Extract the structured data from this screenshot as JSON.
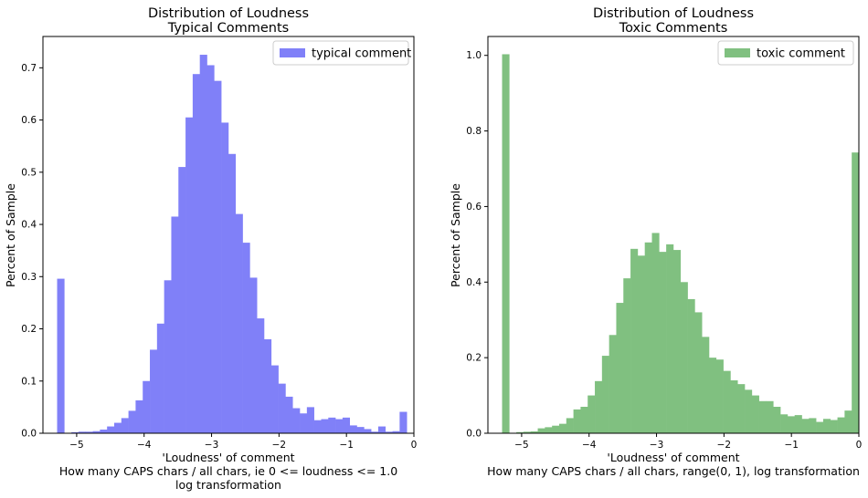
{
  "chart_data": [
    {
      "type": "histogram",
      "title_line1": "Distribution of Loudness",
      "title_line2": "Typical Comments",
      "ylabel": "Percent of Sample",
      "xlabel_lines": [
        "'Loudness' of comment",
        "How many CAPS chars / all chars, ie 0 <= loudness <= 1.0",
        "log transformation"
      ],
      "xlim": [
        -5.5,
        0
      ],
      "ylim": [
        0,
        0.76
      ],
      "xticks": [
        -5,
        -4,
        -3,
        -2,
        -1,
        0
      ],
      "xtick_labels": [
        "−5",
        "−4",
        "−3",
        "−2",
        "−1",
        "0"
      ],
      "yticks": [
        0,
        0.1,
        0.2,
        0.3,
        0.4,
        0.5,
        0.6,
        0.7
      ],
      "ytick_labels": [
        "0.0",
        "0.1",
        "0.2",
        "0.3",
        "0.4",
        "0.5",
        "0.6",
        "0.7"
      ],
      "color": "#8080f8",
      "legend": "typical comment",
      "legend_position": "top-right",
      "bin_start": -5.29,
      "bin_width": 0.1058,
      "values": [
        0.296,
        0.0,
        0.002,
        0.003,
        0.003,
        0.004,
        0.007,
        0.013,
        0.02,
        0.029,
        0.043,
        0.063,
        0.1,
        0.16,
        0.21,
        0.293,
        0.415,
        0.51,
        0.605,
        0.688,
        0.725,
        0.705,
        0.675,
        0.595,
        0.535,
        0.42,
        0.365,
        0.298,
        0.22,
        0.18,
        0.13,
        0.095,
        0.07,
        0.048,
        0.038,
        0.05,
        0.025,
        0.027,
        0.03,
        0.027,
        0.03,
        0.015,
        0.012,
        0.008,
        0.003,
        0.013,
        0.003,
        0.004,
        0.041
      ]
    },
    {
      "type": "histogram",
      "title_line1": "Distribution of Loudness",
      "title_line2": "Toxic Comments",
      "ylabel": "Percent of Sample",
      "xlabel_lines": [
        "'Loudness' of comment",
        "How many CAPS chars / all chars, range(0, 1), log transformation"
      ],
      "xlim": [
        -5.5,
        0
      ],
      "ylim": [
        0,
        1.05
      ],
      "xticks": [
        -5,
        -4,
        -3,
        -2,
        -1,
        0
      ],
      "xtick_labels": [
        "−5",
        "−4",
        "−3",
        "−2",
        "−1",
        "0"
      ],
      "yticks": [
        0,
        0.2,
        0.4,
        0.6,
        0.8,
        1.0
      ],
      "ytick_labels": [
        "0.0",
        "0.2",
        "0.4",
        "0.6",
        "0.8",
        "1.0"
      ],
      "color": "#80c080",
      "legend": "toxic comment",
      "legend_position": "top-right",
      "bin_start": -5.29,
      "bin_width": 0.1058,
      "values": [
        1.003,
        0.0,
        0.003,
        0.004,
        0.005,
        0.013,
        0.016,
        0.02,
        0.025,
        0.04,
        0.063,
        0.07,
        0.1,
        0.138,
        0.205,
        0.26,
        0.345,
        0.41,
        0.488,
        0.47,
        0.505,
        0.53,
        0.48,
        0.5,
        0.485,
        0.4,
        0.355,
        0.32,
        0.255,
        0.2,
        0.195,
        0.165,
        0.14,
        0.13,
        0.115,
        0.1,
        0.085,
        0.085,
        0.07,
        0.05,
        0.045,
        0.048,
        0.038,
        0.04,
        0.03,
        0.038,
        0.035,
        0.042,
        0.06,
        0.743
      ]
    }
  ]
}
